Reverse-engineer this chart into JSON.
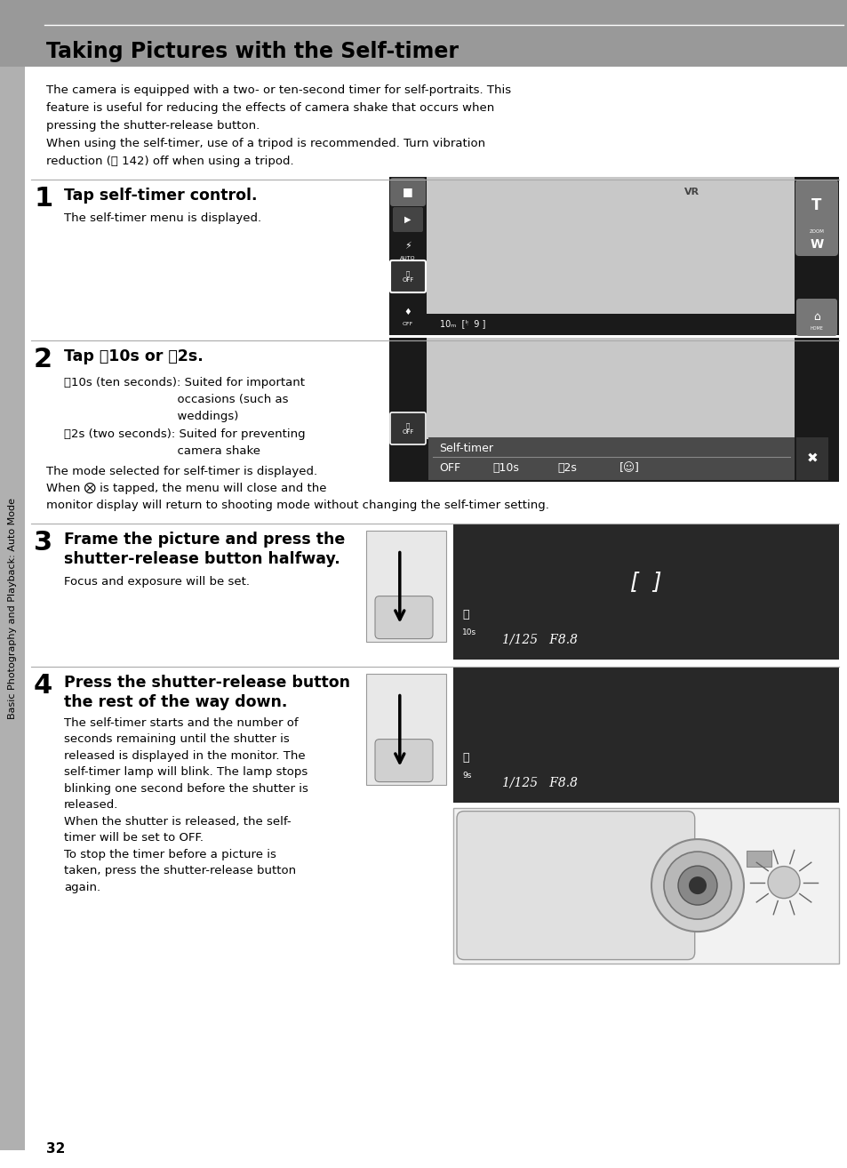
{
  "page_bg": "#ffffff",
  "header_bg": "#999999",
  "title": "Taking Pictures with the Self-timer",
  "title_color": "#000000",
  "sidebar_bg": "#b0b0b0",
  "sidebar_text": "Basic Photography and Playback: Auto Mode",
  "page_number": "32",
  "divider_color": "#aaaaaa",
  "text_color": "#000000",
  "cam_dark": "#1a1a1a",
  "cam_grey": "#c8c8c8",
  "cam_dark2": "#333333",
  "menu_dark": "#555555",
  "menu_title": "Self-timer",
  "menu_items": [
    "OFF",
    "ⓧ10s",
    "ⓧ2s"
  ],
  "x_close_color": "#333333",
  "intro_lines": [
    "The camera is equipped with a two- or ten-second timer for self-portraits. This",
    "feature is useful for reducing the effects of camera shake that occurs when",
    "pressing the shutter-release button.",
    "When using the self-timer, use of a tripod is recommended. Turn vibration",
    "reduction (ⓧ 142) off when using a tripod."
  ],
  "step2_lines": [
    "ⓧ10s (ten seconds): Suited for important",
    "                              occasions (such as",
    "                              weddings)",
    "ⓧ2s (two seconds): Suited for preventing",
    "                              camera shake"
  ],
  "step2_footer": [
    "The mode selected for self-timer is displayed.",
    "When ⨂ is tapped, the menu will close and the",
    "monitor display will return to shooting mode without changing the self-timer setting."
  ],
  "step4_lines": [
    "The self-timer starts and the number of",
    "seconds remaining until the shutter is",
    "released is displayed in the monitor. The",
    "self-timer lamp will blink. The lamp stops",
    "blinking one second before the shutter is",
    "released.",
    "When the shutter is released, the self-",
    "timer will be set to ◿fOFF.",
    "To stop the timer before a picture is",
    "taken, press the shutter-release button",
    "again."
  ]
}
